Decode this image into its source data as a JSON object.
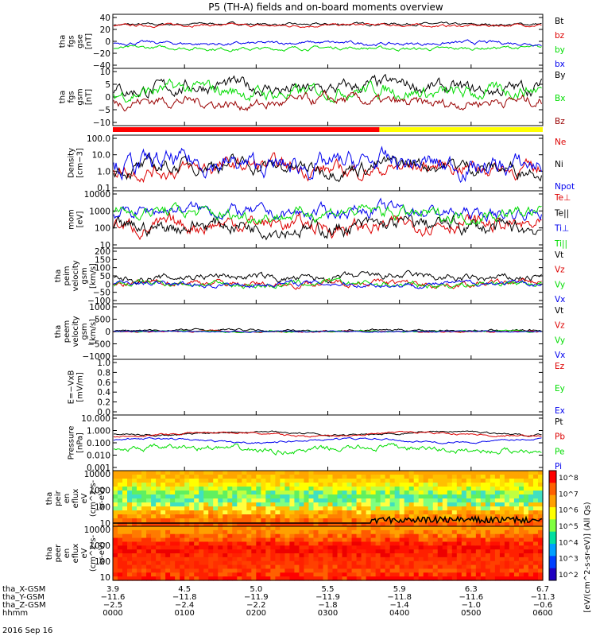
{
  "title": "P5 (TH-A) fields and on-board moments overview",
  "date_label": "2016 Sep 16",
  "colors": {
    "black": "#000000",
    "red": "#dd0000",
    "green": "#00dd00",
    "blue": "#0000ee",
    "darkred": "#990000",
    "yellow": "#ffff00"
  },
  "chart_data": [
    {
      "id": "fgs",
      "type": "line",
      "ylabel": [
        "tha",
        "fgs",
        "gse",
        "[nT]"
      ],
      "yticks": [
        "40",
        "20",
        "0",
        "−20",
        "−40"
      ],
      "ylim": [
        -40,
        45
      ],
      "series": [
        {
          "name": "Bt",
          "color": "#000000",
          "base": 33,
          "amp": 3
        },
        {
          "name": "bz",
          "color": "#dd0000",
          "base": 31,
          "amp": 3
        },
        {
          "name": "by",
          "color": "#00dd00",
          "base": -10,
          "amp": 4
        },
        {
          "name": "bx",
          "color": "#0000ee",
          "base": -1,
          "amp": 4
        }
      ]
    },
    {
      "id": "fgs_gsm",
      "type": "line",
      "ylabel": [
        "tha",
        "fgs",
        "gsm",
        "[nT]"
      ],
      "yticks": [
        "10",
        "5",
        "0",
        "−5",
        "−10"
      ],
      "ylim": [
        -14,
        14
      ],
      "series": [
        {
          "name": "By",
          "color": "#000000",
          "base": 5,
          "amp": 5
        },
        {
          "name": "Bx",
          "color": "#00dd00",
          "base": 3,
          "amp": 5
        },
        {
          "name": "Bz",
          "color": "#990000",
          "base": -3,
          "amp": 4
        }
      ]
    },
    {
      "id": "density",
      "type": "line",
      "log": true,
      "ylabel": [
        "Density",
        "[cm−3]"
      ],
      "yticks": [
        "100.0",
        "10.0",
        "1.0",
        "0.1"
      ],
      "ylim": [
        0.1,
        100
      ],
      "series": [
        {
          "name": "Ne",
          "color": "#dd0000",
          "base": 1.5,
          "amp": 0.6
        },
        {
          "name": "Ni",
          "color": "#000000",
          "base": 2.0,
          "amp": 0.6
        },
        {
          "name": "Npot",
          "color": "#0000ee",
          "base": 2.5,
          "amp": 0.8
        }
      ]
    },
    {
      "id": "temp",
      "type": "line",
      "log": true,
      "ylabel": [
        "mom",
        "[eV]"
      ],
      "yticks": [
        "10000",
        "1000",
        "100",
        "10"
      ],
      "ylim": [
        10,
        10000
      ],
      "series": [
        {
          "name": "Te⊥",
          "color": "#dd0000",
          "base": 150,
          "amp": 0.6
        },
        {
          "name": "Te||",
          "color": "#000000",
          "base": 120,
          "amp": 0.6
        },
        {
          "name": "Ti⊥",
          "color": "#0000ee",
          "base": 900,
          "amp": 0.5
        },
        {
          "name": "Ti||",
          "color": "#00dd00",
          "base": 700,
          "amp": 0.5
        }
      ]
    },
    {
      "id": "peim",
      "type": "line",
      "ylabel": [
        "tha",
        "peim",
        "velocity",
        "gsm",
        "[km/s]"
      ],
      "yticks": [
        "200",
        "150",
        "100",
        "50",
        "0",
        "−50",
        "−100"
      ],
      "ylim": [
        -100,
        200
      ],
      "series": [
        {
          "name": "Vt",
          "color": "#000000",
          "base": 40,
          "amp": 30
        },
        {
          "name": "Vz",
          "color": "#dd0000",
          "base": 5,
          "amp": 25
        },
        {
          "name": "Vy",
          "color": "#00dd00",
          "base": 0,
          "amp": 25
        },
        {
          "name": "Vx",
          "color": "#0000ee",
          "base": 0,
          "amp": 20
        }
      ]
    },
    {
      "id": "peem",
      "type": "line",
      "ylabel": [
        "tha",
        "peem",
        "velocity",
        "gsm",
        "[km/s]"
      ],
      "yticks": [
        "1000",
        "500",
        "0",
        "−500",
        "−1000"
      ],
      "ylim": [
        -1000,
        1000
      ],
      "series": [
        {
          "name": "Vt",
          "color": "#000000",
          "base": 50,
          "amp": 60
        },
        {
          "name": "Vz",
          "color": "#dd0000",
          "base": 0,
          "amp": 40
        },
        {
          "name": "Vy",
          "color": "#00dd00",
          "base": 0,
          "amp": 40
        },
        {
          "name": "Vx",
          "color": "#0000ee",
          "base": 0,
          "amp": 30
        }
      ]
    },
    {
      "id": "efield",
      "type": "line",
      "ylabel": [
        "E=−VxB",
        "[mV/m]"
      ],
      "yticks": [
        "1.0",
        "0.8",
        "0.6",
        "0.4",
        "0.2",
        "0.0"
      ],
      "ylim": [
        0,
        1
      ],
      "series": [
        {
          "name": "Ez",
          "color": "#dd0000",
          "base": null,
          "amp": 0
        },
        {
          "name": "Ey",
          "color": "#00dd00",
          "base": null,
          "amp": 0
        },
        {
          "name": "Ex",
          "color": "#0000ee",
          "base": null,
          "amp": 0
        }
      ]
    },
    {
      "id": "pressure",
      "type": "line",
      "log": true,
      "ylabel": [
        "Pressure",
        "[nPa]"
      ],
      "yticks": [
        "10.000",
        "1.000",
        "0.100",
        "0.010",
        "0.001"
      ],
      "ylim": [
        0.001,
        10
      ],
      "series": [
        {
          "name": "Pt",
          "color": "#000000",
          "base": 0.6,
          "amp": 0.1
        },
        {
          "name": "Pb",
          "color": "#dd0000",
          "base": 0.5,
          "amp": 0.1
        },
        {
          "name": "Pe",
          "color": "#00dd00",
          "base": 0.03,
          "amp": 0.3
        },
        {
          "name": "Pi",
          "color": "#0000ee",
          "base": 0.15,
          "amp": 0.1
        }
      ]
    },
    {
      "id": "peir",
      "type": "heatmap",
      "ylabel": [
        "tha",
        "peir",
        "en",
        "eflux",
        "eV",
        "(cm^2-s-",
        "sr-eV)"
      ],
      "yticks": [
        "10000",
        "1000",
        "100",
        "10"
      ],
      "ylim": [
        5,
        20000
      ]
    },
    {
      "id": "peer",
      "type": "heatmap",
      "ylabel": [
        "tha",
        "peer",
        "en",
        "eflux",
        "eV",
        "(cm^2-s-",
        "sr-eV)"
      ],
      "yticks": [
        "10000",
        "1000",
        "100",
        "10"
      ],
      "ylim": [
        5,
        20000
      ]
    }
  ],
  "colorbar": {
    "ticks": [
      "10^8",
      "10^7",
      "10^6",
      "10^5",
      "10^4",
      "10^3",
      "10^2"
    ],
    "label": "[eV/(cm^2-s-sr-eV)] (All Qs)"
  },
  "xaxis": {
    "rows": [
      {
        "label": "tha_X-GSM",
        "values": [
          "3.9",
          "4.5",
          "5.0",
          "5.5",
          "5.9",
          "6.3",
          "6.7"
        ]
      },
      {
        "label": "tha_Y-GSM",
        "values": [
          "−11.6",
          "−11.8",
          "−11.9",
          "−11.9",
          "−11.8",
          "−11.6",
          "−11.3"
        ]
      },
      {
        "label": "tha_Z-GSM",
        "values": [
          "−2.5",
          "−2.4",
          "−2.2",
          "−1.8",
          "−1.4",
          "−1.0",
          "−0.6"
        ]
      },
      {
        "label": "hhmm",
        "values": [
          "0000",
          "0100",
          "0200",
          "0300",
          "0400",
          "0500",
          "0600"
        ]
      }
    ]
  }
}
